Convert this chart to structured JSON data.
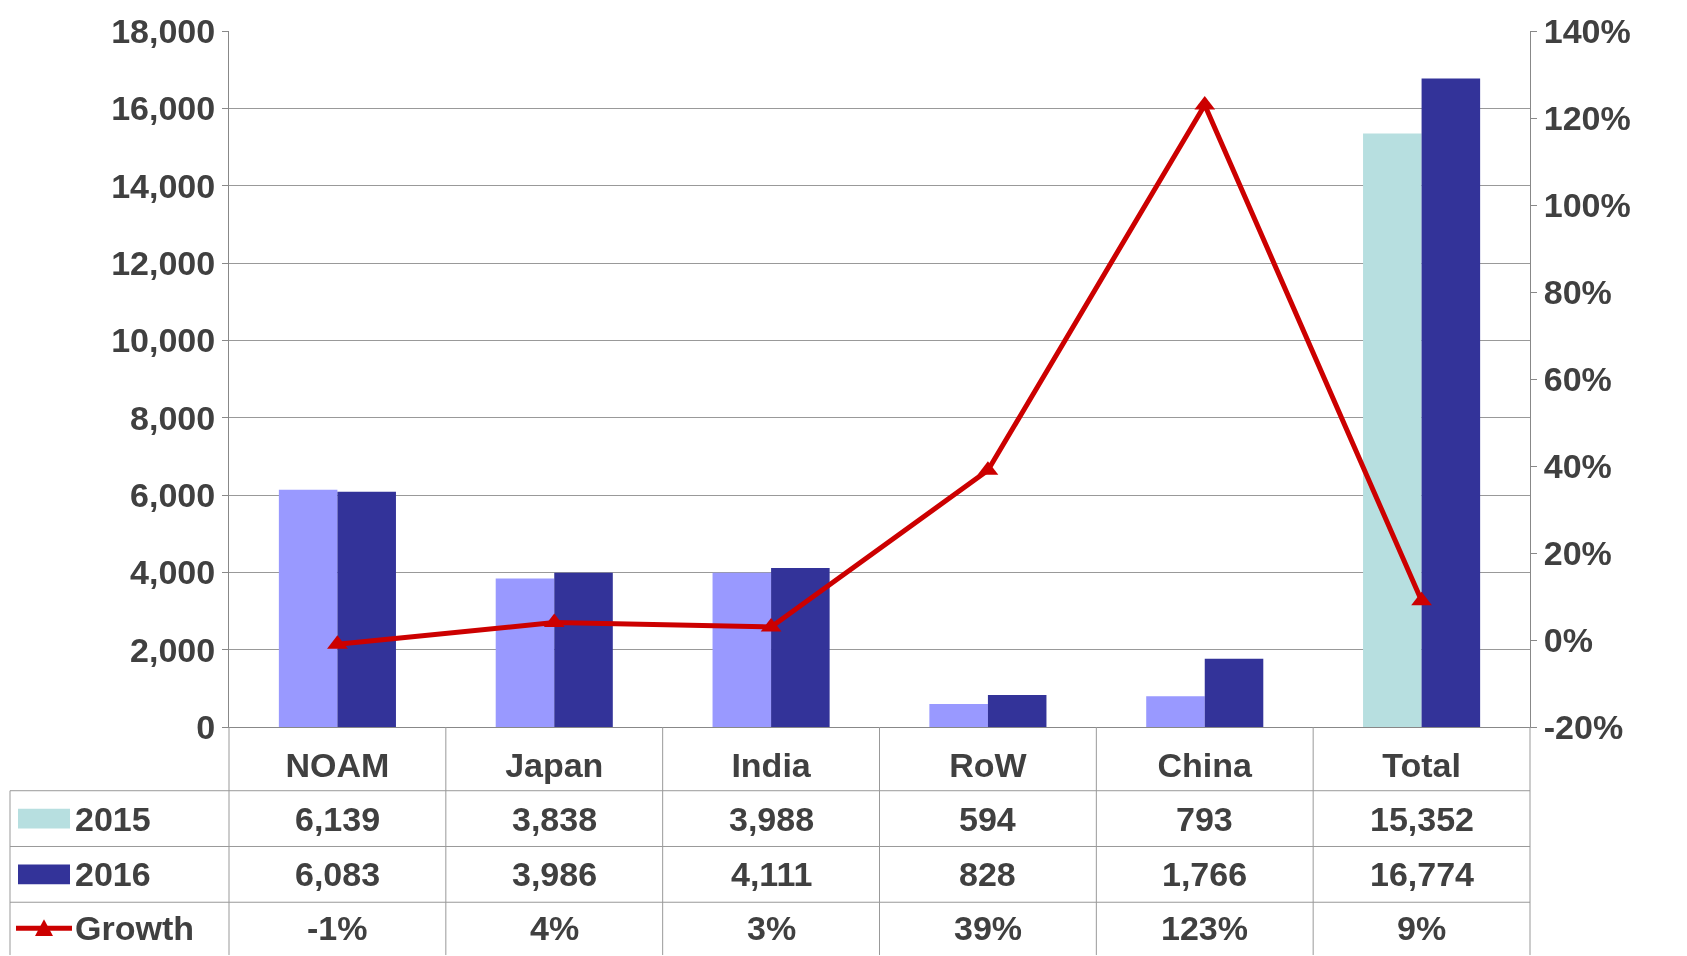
{
  "chart_data": {
    "type": "bar",
    "categories": [
      "NOAM",
      "Japan",
      "India",
      "RoW",
      "China",
      "Total"
    ],
    "series": [
      {
        "name": "2015",
        "color": "#b7dfe0",
        "colors": [
          "#9999ff",
          "#9999ff",
          "#9999ff",
          "#9999ff",
          "#9999ff",
          "#b7dfe0"
        ],
        "values": [
          6139,
          3838,
          3988,
          594,
          793,
          15352
        ],
        "value_labels": [
          "6,139",
          "3,838",
          "3,988",
          "594",
          "793",
          "15,352"
        ]
      },
      {
        "name": "2016",
        "color": "#333399",
        "values": [
          6083,
          3986,
          4111,
          828,
          1766,
          16774
        ],
        "value_labels": [
          "6,083",
          "3,986",
          "4,111",
          "828",
          "1,766",
          "16,774"
        ]
      },
      {
        "name": "Growth",
        "type": "line",
        "axis": "y2",
        "color": "#cc0000",
        "marker": "triangle",
        "values": [
          -1,
          4,
          3,
          39,
          123,
          9
        ],
        "value_labels": [
          "-1%",
          "4%",
          "3%",
          "39%",
          "123%",
          "9%"
        ]
      }
    ],
    "ylim": [
      0,
      18000
    ],
    "yticks": [
      {
        "value": 0,
        "label": "0"
      },
      {
        "value": 2000,
        "label": "2,000"
      },
      {
        "value": 4000,
        "label": "4,000"
      },
      {
        "value": 6000,
        "label": "6,000"
      },
      {
        "value": 8000,
        "label": "8,000"
      },
      {
        "value": 10000,
        "label": "10,000"
      },
      {
        "value": 12000,
        "label": "12,000"
      },
      {
        "value": 14000,
        "label": "14,000"
      },
      {
        "value": 16000,
        "label": "16,000"
      },
      {
        "value": 18000,
        "label": "18,000"
      }
    ],
    "y2lim": [
      -20,
      140
    ],
    "y2ticks": [
      {
        "value": -20,
        "label": "-20%"
      },
      {
        "value": 0,
        "label": "0%"
      },
      {
        "value": 20,
        "label": "20%"
      },
      {
        "value": 40,
        "label": "40%"
      },
      {
        "value": 60,
        "label": "60%"
      },
      {
        "value": 80,
        "label": "80%"
      },
      {
        "value": 100,
        "label": "100%"
      },
      {
        "value": 120,
        "label": "120%"
      },
      {
        "value": 140,
        "label": "140%"
      }
    ],
    "grid": "y",
    "legend": "bottom left"
  }
}
